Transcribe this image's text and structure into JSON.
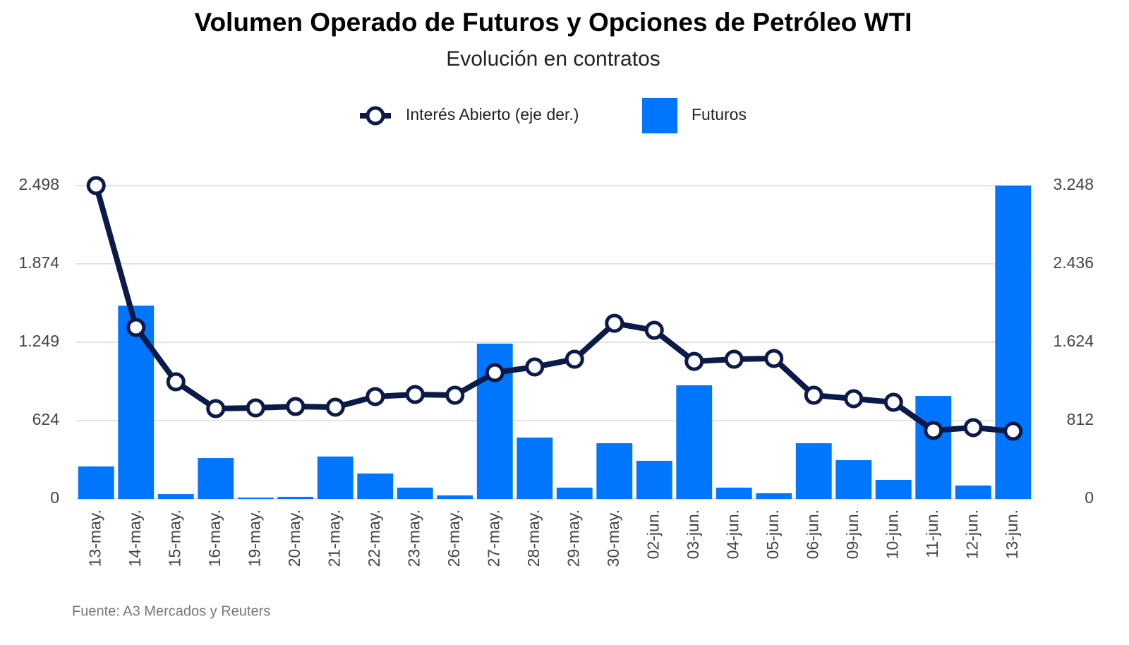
{
  "chart_data": {
    "type": "bar_line",
    "title": "Volumen Operado de Futuros y Opciones de Petróleo WTI",
    "subtitle": "Evolución en contratos",
    "source": "Fuente: A3 Mercados y Reuters",
    "categories": [
      "13-may.",
      "14-may.",
      "15-may.",
      "16-may.",
      "19-may.",
      "20-may.",
      "21-may.",
      "22-may.",
      "23-may.",
      "26-may.",
      "27-may.",
      "28-may.",
      "29-may.",
      "30-may.",
      "02-jun.",
      "03-jun.",
      "04-jun.",
      "05-jun.",
      "06-jun.",
      "09-jun.",
      "10-jun.",
      "11-jun.",
      "12-jun.",
      "13-jun."
    ],
    "series": [
      {
        "name": "Interés Abierto (eje der.)",
        "color": "#0c1a4a",
        "type": "line",
        "axis": "y2",
        "values": [
          3248,
          1778,
          1214,
          936,
          944,
          958,
          951,
          1061,
          1083,
          1075,
          1309,
          1368,
          1448,
          1821,
          1748,
          1426,
          1448,
          1456,
          1075,
          1039,
          1002,
          710,
          739,
          702
        ]
      },
      {
        "name": "Futuros",
        "color": "#0076ff",
        "type": "bar",
        "values": [
          259,
          1541,
          39,
          326,
          11,
          17,
          338,
          203,
          90,
          28,
          1238,
          489,
          90,
          444,
          304,
          906,
          90,
          45,
          444,
          309,
          152,
          821,
          107,
          2498
        ]
      }
    ],
    "ylim": [
      0,
      2498
    ],
    "yticks": [
      0,
      {
        "value": 624,
        "label": "624"
      },
      {
        "value": 1249,
        "label": "1.249"
      },
      {
        "value": 1874,
        "label": "1.874"
      },
      {
        "value": 2498,
        "label": "2.498"
      }
    ],
    "y2lim": [
      0,
      3248
    ],
    "y2ticks": [
      0,
      {
        "value": 812,
        "label": "812"
      },
      {
        "value": 1624,
        "label": "1.624"
      },
      {
        "value": 2436,
        "label": "2.436"
      },
      {
        "value": 3248,
        "label": "3.248"
      }
    ],
    "grid": true,
    "legend": "top"
  }
}
